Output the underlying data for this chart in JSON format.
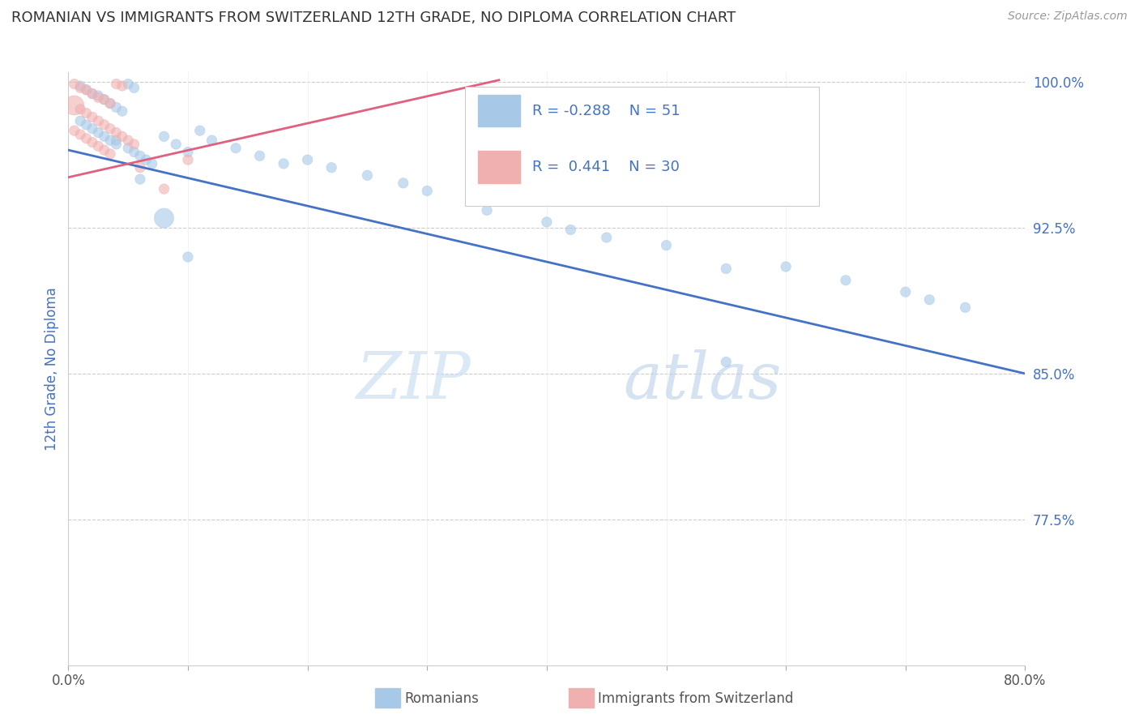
{
  "title": "ROMANIAN VS IMMIGRANTS FROM SWITZERLAND 12TH GRADE, NO DIPLOMA CORRELATION CHART",
  "source": "Source: ZipAtlas.com",
  "ylabel": "12th Grade, No Diploma",
  "xmin": 0.0,
  "xmax": 0.8,
  "ymin": 0.7,
  "ymax": 1.005,
  "xtick_pos": [
    0.0,
    0.1,
    0.2,
    0.3,
    0.4,
    0.5,
    0.6,
    0.7,
    0.8
  ],
  "xtick_labels": [
    "0.0%",
    "",
    "",
    "",
    "",
    "",
    "",
    "",
    "80.0%"
  ],
  "ytick_pos": [
    0.775,
    0.85,
    0.925,
    1.0
  ],
  "ytick_labels": [
    "77.5%",
    "85.0%",
    "92.5%",
    "100.0%"
  ],
  "blue_R": -0.288,
  "blue_N": 51,
  "pink_R": 0.441,
  "pink_N": 30,
  "blue_color": "#a8c8e8",
  "pink_color": "#f0b0b0",
  "blue_line_color": "#4472c4",
  "pink_line_color": "#e06080",
  "legend_label_blue": "Romanians",
  "legend_label_pink": "Immigrants from Switzerland",
  "watermark_zip": "ZIP",
  "watermark_atlas": "atlas",
  "blue_line_x": [
    0.0,
    0.8
  ],
  "blue_line_y": [
    0.965,
    0.85
  ],
  "pink_line_x": [
    0.0,
    0.36
  ],
  "pink_line_y": [
    0.951,
    1.001
  ],
  "blue_scatter_x": [
    0.01,
    0.015,
    0.02,
    0.025,
    0.03,
    0.035,
    0.04,
    0.045,
    0.05,
    0.055,
    0.01,
    0.015,
    0.02,
    0.025,
    0.03,
    0.035,
    0.04,
    0.05,
    0.055,
    0.06,
    0.065,
    0.07,
    0.08,
    0.09,
    0.1,
    0.11,
    0.12,
    0.14,
    0.16,
    0.18,
    0.2,
    0.22,
    0.25,
    0.28,
    0.3,
    0.35,
    0.4,
    0.42,
    0.45,
    0.5,
    0.55,
    0.6,
    0.65,
    0.7,
    0.72,
    0.75,
    0.1,
    0.08,
    0.06,
    0.04,
    0.55
  ],
  "blue_scatter_y": [
    0.998,
    0.996,
    0.994,
    0.993,
    0.991,
    0.989,
    0.987,
    0.985,
    0.999,
    0.997,
    0.98,
    0.978,
    0.976,
    0.974,
    0.972,
    0.97,
    0.968,
    0.966,
    0.964,
    0.962,
    0.96,
    0.958,
    0.972,
    0.968,
    0.964,
    0.975,
    0.97,
    0.966,
    0.962,
    0.958,
    0.96,
    0.956,
    0.952,
    0.948,
    0.944,
    0.934,
    0.928,
    0.924,
    0.92,
    0.916,
    0.904,
    0.905,
    0.898,
    0.892,
    0.888,
    0.884,
    0.91,
    0.93,
    0.95,
    0.97,
    0.856
  ],
  "blue_scatter_s": [
    80,
    80,
    80,
    80,
    80,
    80,
    80,
    80,
    80,
    80,
    80,
    80,
    80,
    80,
    80,
    80,
    80,
    80,
    80,
    80,
    80,
    80,
    80,
    80,
    80,
    80,
    80,
    80,
    80,
    80,
    80,
    80,
    80,
    80,
    80,
    80,
    80,
    80,
    80,
    80,
    80,
    80,
    80,
    80,
    80,
    80,
    80,
    300,
    80,
    80,
    80
  ],
  "pink_scatter_x": [
    0.005,
    0.01,
    0.015,
    0.02,
    0.025,
    0.03,
    0.035,
    0.04,
    0.045,
    0.005,
    0.01,
    0.015,
    0.02,
    0.025,
    0.03,
    0.035,
    0.04,
    0.045,
    0.05,
    0.055,
    0.005,
    0.01,
    0.015,
    0.02,
    0.025,
    0.03,
    0.035,
    0.1,
    0.08,
    0.06
  ],
  "pink_scatter_y": [
    0.999,
    0.997,
    0.996,
    0.994,
    0.992,
    0.991,
    0.989,
    0.999,
    0.998,
    0.988,
    0.986,
    0.984,
    0.982,
    0.98,
    0.978,
    0.976,
    0.974,
    0.972,
    0.97,
    0.968,
    0.975,
    0.973,
    0.971,
    0.969,
    0.967,
    0.965,
    0.963,
    0.96,
    0.945,
    0.956
  ],
  "pink_scatter_s": [
    80,
    80,
    80,
    80,
    80,
    80,
    80,
    80,
    80,
    300,
    80,
    80,
    80,
    80,
    80,
    80,
    80,
    80,
    80,
    80,
    80,
    80,
    80,
    80,
    80,
    80,
    80,
    80,
    80,
    80
  ]
}
